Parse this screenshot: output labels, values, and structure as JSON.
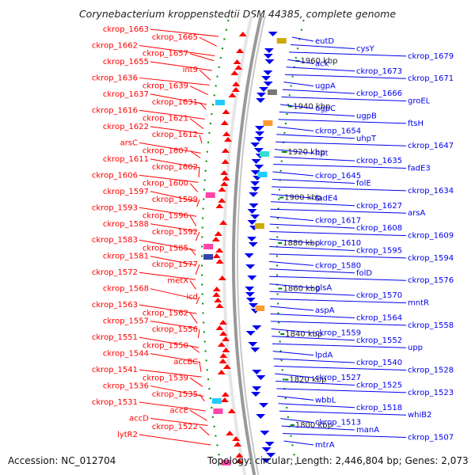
{
  "header": {
    "title": "Corynebacterium kroppenstedtii DSM 44385, complete genome"
  },
  "footer": {
    "accession": "Accession: NC_012704",
    "topology": "Topology: circular; Length: 2,446,804 bp; Genes: 2,073"
  },
  "colors": {
    "reverse_strand": "#ff0000",
    "forward_strand": "#0000ee",
    "backbone": "#999999",
    "tick": "#008800"
  },
  "positions": [
    "1960 kbp",
    "1940 kbp",
    "1920 kbp",
    "1900 kbp",
    "1880 kbp",
    "1860 kbp",
    "1840 kbp",
    "1820 kbp",
    "1800 kbp"
  ],
  "left_labels": [
    "ckrop_1663",
    "ckrop_1665",
    "ckrop_1662",
    "ckrop_1657",
    "ckrop_1655",
    "int9",
    "ckrop_1636",
    "ckrop_1639",
    "ckrop_1637",
    "ckrop_1631",
    "ckrop_1616",
    "ckrop_1621",
    "ckrop_1622",
    "ckrop_1612",
    "arsC",
    "ckrop_1607",
    "ckrop_1611",
    "ckrop_1602",
    "ckrop_1606",
    "ckrop_1600",
    "ckrop_1597",
    "ckrop_1599",
    "ckrop_1593",
    "ckrop_1596",
    "ckrop_1588",
    "ckrop_1592",
    "ckrop_1583",
    "ckrop_1585",
    "ckrop_1581",
    "ckrop_1577",
    "ckrop_1572",
    "metX",
    "ckrop_1568",
    "icd",
    "ckrop_1563",
    "ckrop_1562",
    "ckrop_1557",
    "ckrop_1556",
    "ckrop_1551",
    "ckrop_1550",
    "ckrop_1544",
    "accBC",
    "ckrop_1541",
    "ckrop_1539",
    "ckrop_1536",
    "ckrop_1535",
    "ckrop_1531",
    "accE",
    "accD",
    "ckrop_1522",
    "lytR2"
  ],
  "right_labels": [
    "eutD",
    "cysY",
    "ckrop_1679",
    "ack",
    "ckrop_1673",
    "ckrop_1671",
    "ugpA",
    "ckrop_1666",
    "groEL",
    "ugpC",
    "ugpB",
    "ftsH",
    "ckrop_1654",
    "uhpT",
    "ckrop_1647",
    "hpt",
    "ckrop_1635",
    "fadE3",
    "ckrop_1645",
    "folE",
    "ckrop_1634",
    "fadE4",
    "ckrop_1627",
    "arsA",
    "ckrop_1617",
    "ckrop_1608",
    "ckrop_1609",
    "ckrop_1610",
    "ckrop_1595",
    "ckrop_1594",
    "ckrop_1580",
    "folD",
    "ckrop_1576",
    "glsA",
    "ckrop_1570",
    "mntR",
    "aspA",
    "ckrop_1564",
    "ckrop_1558",
    "ckrop_1559",
    "ckrop_1552",
    "upp",
    "lpdA",
    "ckrop_1540",
    "ckrop_1528",
    "ckrop_1527",
    "ckrop_1525",
    "ckrop_1523",
    "wbbL",
    "ckrop_1518",
    "whiB2",
    "ckrop_1513",
    "manA",
    "ckrop_1507",
    "mtrA"
  ]
}
